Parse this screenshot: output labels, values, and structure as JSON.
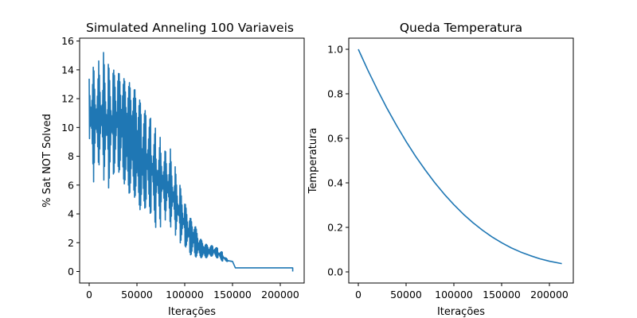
{
  "colors": {
    "series": "#1f77b4"
  },
  "chart_data": [
    {
      "type": "line",
      "title": "Simulated Anneling 100 Variaveis",
      "xlabel": "Iterações",
      "ylabel": "% Sat NOT Solved",
      "xlim": [
        -10000,
        225000
      ],
      "ylim": [
        -0.8,
        16.2
      ],
      "xticks": [
        0,
        50000,
        100000,
        150000,
        200000
      ],
      "yticks": [
        0,
        2,
        4,
        6,
        8,
        10,
        12,
        14,
        16
      ],
      "xtick_labels": [
        "0",
        "50000",
        "100000",
        "150000",
        "200000"
      ],
      "ytick_labels": [
        "0",
        "2",
        "4",
        "6",
        "8",
        "10",
        "12",
        "14",
        "16"
      ],
      "grid": false,
      "series": [
        {
          "x": [
            0,
            5000,
            10000,
            15000,
            20000,
            25000,
            30000,
            35000,
            40000,
            45000,
            50000,
            55000,
            60000,
            65000,
            70000,
            75000,
            80000,
            85000,
            90000,
            95000,
            100000,
            105000,
            110000,
            115000,
            120000,
            125000,
            130000,
            135000,
            140000,
            145000,
            150000,
            153000,
            200000,
            213000
          ],
          "y_high": [
            15.3,
            15.2,
            15.1,
            15.3,
            14.4,
            14.0,
            13.9,
            13.5,
            13.2,
            13.0,
            12.4,
            11.6,
            11.0,
            10.6,
            9.9,
            9.6,
            9.0,
            8.8,
            7.3,
            6.0,
            4.8,
            3.8,
            3.4,
            2.4,
            2.0,
            1.8,
            1.8,
            1.6,
            1.3,
            0.8,
            0.7,
            0.25,
            0.25,
            0.25
          ],
          "y_low": [
            6.8,
            5.6,
            6.5,
            6.0,
            5.7,
            6.7,
            7.0,
            6.5,
            5.3,
            5.5,
            4.8,
            4.0,
            4.5,
            3.9,
            3.0,
            3.0,
            3.2,
            2.5,
            2.4,
            2.0,
            1.8,
            1.2,
            1.0,
            1.0,
            0.9,
            1.0,
            1.1,
            0.9,
            0.7,
            0.7,
            0.7,
            0.25,
            0.25,
            0.0
          ]
        }
      ]
    },
    {
      "type": "line",
      "title": "Queda Temperatura",
      "xlabel": "Iterações",
      "ylabel": "Temperatura",
      "xlim": [
        -10000,
        225000
      ],
      "ylim": [
        -0.05,
        1.05
      ],
      "xticks": [
        0,
        50000,
        100000,
        150000,
        200000
      ],
      "yticks": [
        0.0,
        0.2,
        0.4,
        0.6,
        0.8,
        1.0
      ],
      "xtick_labels": [
        "0",
        "50000",
        "100000",
        "150000",
        "200000"
      ],
      "ytick_labels": [
        "0.0",
        "0.2",
        "0.4",
        "0.6",
        "0.8",
        "1.0"
      ],
      "grid": false,
      "series": [
        {
          "x": [
            0,
            10000,
            20000,
            30000,
            40000,
            50000,
            60000,
            70000,
            80000,
            90000,
            100000,
            110000,
            120000,
            130000,
            140000,
            150000,
            160000,
            170000,
            180000,
            190000,
            200000,
            213000
          ],
          "y": [
            1.0,
            0.906,
            0.818,
            0.735,
            0.658,
            0.586,
            0.519,
            0.458,
            0.401,
            0.349,
            0.302,
            0.259,
            0.221,
            0.187,
            0.157,
            0.131,
            0.108,
            0.089,
            0.073,
            0.059,
            0.048,
            0.037
          ]
        }
      ]
    }
  ]
}
